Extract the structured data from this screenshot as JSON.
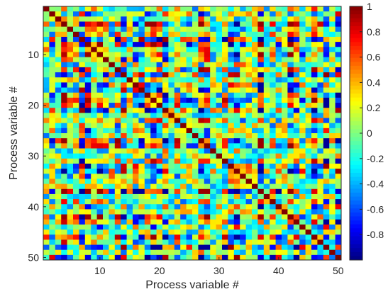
{
  "chart_data": {
    "type": "heatmap",
    "title": "",
    "xlabel": "Process variable #",
    "ylabel": "Process variable #",
    "n": 50,
    "xlim": [
      0.5,
      50.5
    ],
    "ylim": [
      0.5,
      50.5
    ],
    "y_direction": "reversed",
    "x_ticks": [
      10,
      20,
      30,
      40,
      50
    ],
    "y_ticks": [
      10,
      20,
      30,
      40,
      50
    ],
    "colormap": "jet",
    "clim": [
      -1,
      1
    ],
    "colorbar_ticks": [
      1,
      0.8,
      0.6,
      0.4,
      0.2,
      0,
      -0.2,
      -0.4,
      -0.6,
      -0.8
    ],
    "colorbar_tick_labels": [
      "1",
      "0.8",
      "0.6",
      "0.4",
      "0.2",
      "0",
      "-0.2",
      "-0.4",
      "-0.6",
      "-0.8"
    ],
    "diagonal_value": 1,
    "off_diagonal": "dense correlation matrix; individual cell values not labeled, rendered as pseudo-random field in [-1, 1]"
  }
}
